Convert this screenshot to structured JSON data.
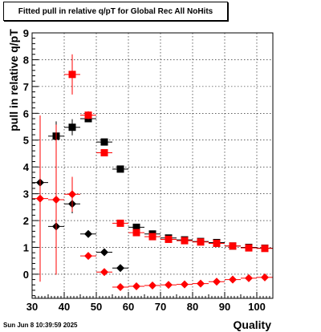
{
  "chart_data": {
    "type": "scatter",
    "title": "Fitted pull in relative q/pT for Global Rec All NoHits",
    "xlabel": "Quality",
    "ylabel": "pull in relative q/pT",
    "xlim": [
      30,
      105
    ],
    "ylim": [
      -0.9,
      9
    ],
    "x_ticks": [
      30,
      40,
      50,
      60,
      70,
      80,
      90,
      100
    ],
    "y_ticks": [
      0,
      1,
      2,
      3,
      4,
      5,
      6,
      7,
      8,
      9
    ],
    "grid": true,
    "legend": "none",
    "series": [
      {
        "marker": "square",
        "color": "#000000",
        "points": [
          {
            "x": 37.5,
            "y": 5.15,
            "yerr": 0.55
          },
          {
            "x": 42.5,
            "y": 5.48,
            "yerr": 0.3
          },
          {
            "x": 47.5,
            "y": 5.8,
            "yerr": 0.1
          },
          {
            "x": 52.5,
            "y": 4.93,
            "yerr": 0.05
          },
          {
            "x": 57.5,
            "y": 3.92,
            "yerr": 0.05
          },
          {
            "x": 62.5,
            "y": 1.75,
            "yerr": 0.03
          },
          {
            "x": 67.5,
            "y": 1.5,
            "yerr": 0.03
          },
          {
            "x": 72.5,
            "y": 1.35,
            "yerr": 0.03
          },
          {
            "x": 77.5,
            "y": 1.28,
            "yerr": 0.03
          },
          {
            "x": 82.5,
            "y": 1.22,
            "yerr": 0.03
          },
          {
            "x": 87.5,
            "y": 1.18,
            "yerr": 0.03
          },
          {
            "x": 92.5,
            "y": 1.05,
            "yerr": 0.03
          },
          {
            "x": 97.5,
            "y": 1.0,
            "yerr": 0.03
          },
          {
            "x": 102.5,
            "y": 0.97,
            "yerr": 0.03
          }
        ]
      },
      {
        "marker": "square",
        "color": "#ff0000",
        "points": [
          {
            "x": 42.5,
            "y": 7.45,
            "yerr": 0.75
          },
          {
            "x": 47.5,
            "y": 5.93,
            "yerr": 0.15
          },
          {
            "x": 52.5,
            "y": 4.53,
            "yerr": 0.08
          },
          {
            "x": 57.5,
            "y": 1.9,
            "yerr": 0.05
          },
          {
            "x": 62.5,
            "y": 1.55,
            "yerr": 0.04
          },
          {
            "x": 67.5,
            "y": 1.4,
            "yerr": 0.03
          },
          {
            "x": 72.5,
            "y": 1.3,
            "yerr": 0.03
          },
          {
            "x": 77.5,
            "y": 1.25,
            "yerr": 0.03
          },
          {
            "x": 82.5,
            "y": 1.2,
            "yerr": 0.03
          },
          {
            "x": 87.5,
            "y": 1.15,
            "yerr": 0.03
          },
          {
            "x": 92.5,
            "y": 1.05,
            "yerr": 0.03
          },
          {
            "x": 97.5,
            "y": 0.98,
            "yerr": 0.03
          },
          {
            "x": 102.5,
            "y": 0.96,
            "yerr": 0.03
          }
        ]
      },
      {
        "marker": "diamond",
        "color": "#000000",
        "points": [
          {
            "x": 32.5,
            "y": 3.42,
            "yerr": 0.15
          },
          {
            "x": 37.5,
            "y": 1.78,
            "yerr": 0.9
          },
          {
            "x": 42.5,
            "y": 2.62,
            "yerr": 0.35
          },
          {
            "x": 47.5,
            "y": 1.5,
            "yerr": 0.05
          },
          {
            "x": 52.5,
            "y": 0.82,
            "yerr": 0.03
          },
          {
            "x": 57.5,
            "y": 0.23,
            "yerr": 0.03
          }
        ]
      },
      {
        "marker": "diamond",
        "color": "#ff0000",
        "points": [
          {
            "x": 32.5,
            "y": 2.82,
            "yerr": 3.1
          },
          {
            "x": 37.5,
            "y": 2.78,
            "yerr": 2.8
          },
          {
            "x": 42.5,
            "y": 2.98,
            "yerr": 0.65
          },
          {
            "x": 47.5,
            "y": 0.68,
            "yerr": 0.05
          },
          {
            "x": 52.5,
            "y": 0.08,
            "yerr": 0.03
          },
          {
            "x": 57.5,
            "y": -0.48,
            "yerr": 0.03
          },
          {
            "x": 62.5,
            "y": -0.45,
            "yerr": 0.03
          },
          {
            "x": 67.5,
            "y": -0.42,
            "yerr": 0.03
          },
          {
            "x": 72.5,
            "y": -0.4,
            "yerr": 0.03
          },
          {
            "x": 77.5,
            "y": -0.38,
            "yerr": 0.03
          },
          {
            "x": 82.5,
            "y": -0.35,
            "yerr": 0.03
          },
          {
            "x": 87.5,
            "y": -0.28,
            "yerr": 0.03
          },
          {
            "x": 92.5,
            "y": -0.2,
            "yerr": 0.03
          },
          {
            "x": 97.5,
            "y": -0.15,
            "yerr": 0.03
          },
          {
            "x": 102.5,
            "y": -0.12,
            "yerr": 0.03
          }
        ]
      }
    ]
  },
  "footer": {
    "timestamp": "Sun Jun  8 10:39:59 2025"
  }
}
